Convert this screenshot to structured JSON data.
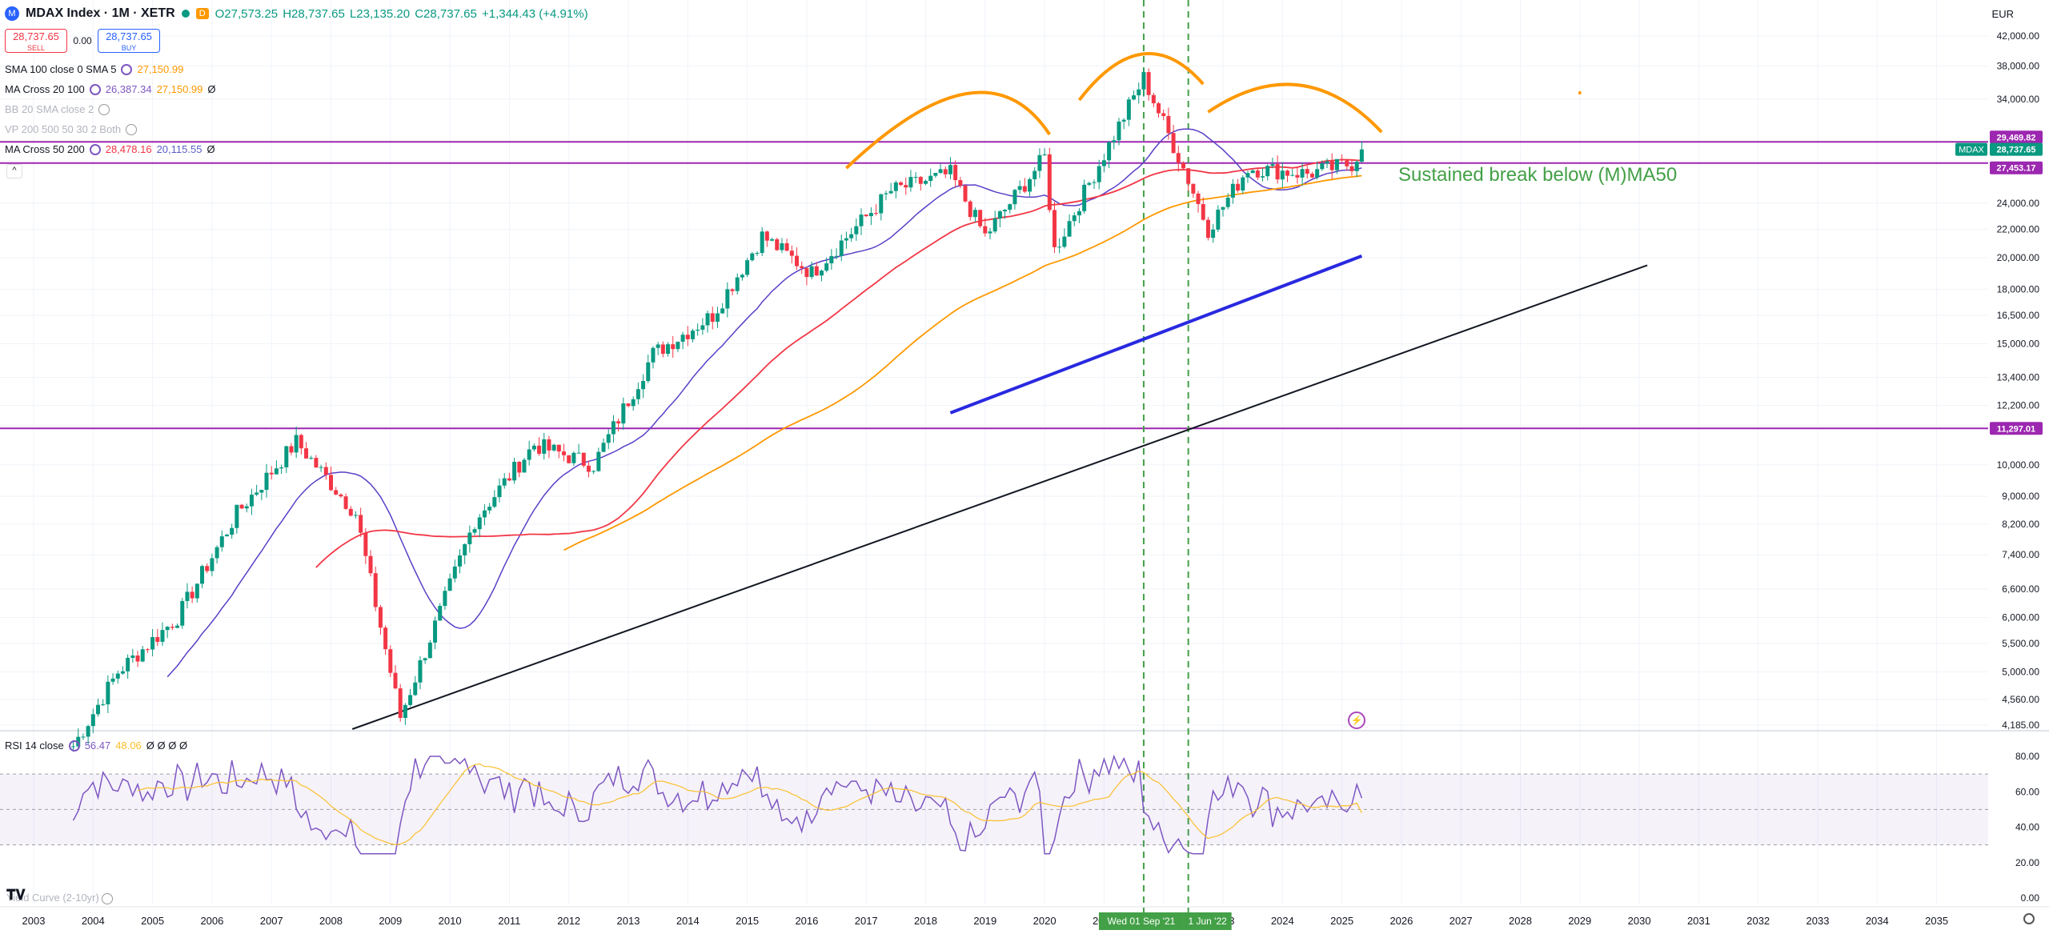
{
  "header": {
    "symbol": "MDAX Index · 1M · XETR",
    "badge": "D",
    "open": "O27,573.25",
    "high": "H28,737.65",
    "low": "L23,135.20",
    "close": "C28,737.65",
    "change": "+1,344.43 (+4.91%)"
  },
  "trade": {
    "sell_price": "28,737.65",
    "sell_label": "SELL",
    "spread": "0.00",
    "buy_price": "28,737.65",
    "buy_label": "BUY"
  },
  "indicators": [
    {
      "name": "SMA 100 close 0 SMA 5",
      "v1": "27,150.99",
      "v1_color": "#ff9800",
      "v2": "",
      "v2_color": ""
    },
    {
      "name": "MA Cross 20 100",
      "v1": "26,387.34",
      "v1_color": "#7e57c2",
      "v2": "27,150.99",
      "v2_color": "#ff9800"
    },
    {
      "name": "BB 20 SMA close 2",
      "v1": "",
      "v1_color": "",
      "v2": "",
      "v2_color": ""
    },
    {
      "name": "VP 200 500 50 30 2 Both",
      "v1": "",
      "v1_color": "",
      "v2": "",
      "v2_color": ""
    },
    {
      "name": "MA Cross 50 200",
      "v1": "28,478.16",
      "v1_color": "#f23645",
      "v2": "20,115.55",
      "v2_color": "#5b5fc7"
    }
  ],
  "empty_symbol": "Ø",
  "currency": "EUR",
  "annotation": "Sustained break below (M)MA50",
  "rsi": {
    "label": "RSI 14 close",
    "value": "56.47",
    "ma": "48.06",
    "extras": "Ø Ø Ø Ø"
  },
  "yield_curve_label": "Yield Curve (2-10yr)",
  "price_axis": {
    "ticks": [
      "42,000.00",
      "38,000.00",
      "34,000.00",
      "24,000.00",
      "22,000.00",
      "20,000.00",
      "18,000.00",
      "16,500.00",
      "15,000.00",
      "13,400.00",
      "12,200.00",
      "10,000.00",
      "9,000.00",
      "8,200.00",
      "7,400.00",
      "6,600.00",
      "6,000.00",
      "5,500.00",
      "5,000.00",
      "4,560.00",
      "4,185.00"
    ],
    "badges": [
      {
        "text": "29,469.82",
        "color": "#9c27b0"
      },
      {
        "text": "28,737.65",
        "color": "#089981"
      },
      {
        "text": "27,453.17",
        "color": "#9c27b0"
      },
      {
        "text": "11,297.01",
        "color": "#9c27b0"
      }
    ],
    "symbol_tag": "MDAX"
  },
  "rsi_axis": {
    "ticks": [
      "80.00",
      "60.00",
      "40.00",
      "20.00",
      "0.00"
    ]
  },
  "time_axis": {
    "years": [
      "2003",
      "2004",
      "2005",
      "2006",
      "2007",
      "2008",
      "2009",
      "2010",
      "2011",
      "2012",
      "2013",
      "2014",
      "2015",
      "2016",
      "2017",
      "2018",
      "2019",
      "2020",
      "2021",
      "2022",
      "2023",
      "2024",
      "2025",
      "2026",
      "2027",
      "2028",
      "2029",
      "2030",
      "2031",
      "2032",
      "2033",
      "2034",
      "2035"
    ],
    "cursor_labels": [
      "Wed 01 Sep '21",
      "1 Jun '22"
    ]
  },
  "chart_data": {
    "type": "line",
    "title": "MDAX Index · 1M · XETR",
    "currency": "EUR",
    "scale": "log",
    "price_series_approx": {
      "x": [
        "2003-09",
        "2004-06",
        "2005-06",
        "2006-06",
        "2007-06",
        "2008-06",
        "2009-03",
        "2010-06",
        "2011-06",
        "2012-06",
        "2013-06",
        "2014-06",
        "2015-04",
        "2016-02",
        "2017-06",
        "2018-06",
        "2019-01",
        "2020-01",
        "2020-03",
        "2021-09",
        "2022-06",
        "2022-10",
        "2023-06",
        "2024-06",
        "2025-03",
        "2025-05"
      ],
      "y": [
        3900,
        5000,
        6000,
        8500,
        10800,
        8500,
        4300,
        8300,
        10700,
        10000,
        14500,
        16500,
        21500,
        19000,
        25000,
        26500,
        21500,
        28000,
        20500,
        36500,
        26000,
        22000,
        27000,
        26500,
        27400,
        28737.65
      ]
    },
    "horizontal_levels": [
      29469.82,
      27453.17,
      11297.01
    ],
    "vertical_markers": [
      "2021-09-01",
      "2022-06-01"
    ],
    "ma_200_segment": {
      "x": [
        "2018-06",
        "2025-05"
      ],
      "y": [
        11900,
        20115.55
      ]
    },
    "trendline": {
      "x": [
        "2009-03",
        "2030-01"
      ],
      "y": [
        4185,
        19500
      ]
    },
    "rsi": {
      "latest": 56.47,
      "ma": 48.06,
      "band": [
        30,
        70
      ]
    }
  }
}
